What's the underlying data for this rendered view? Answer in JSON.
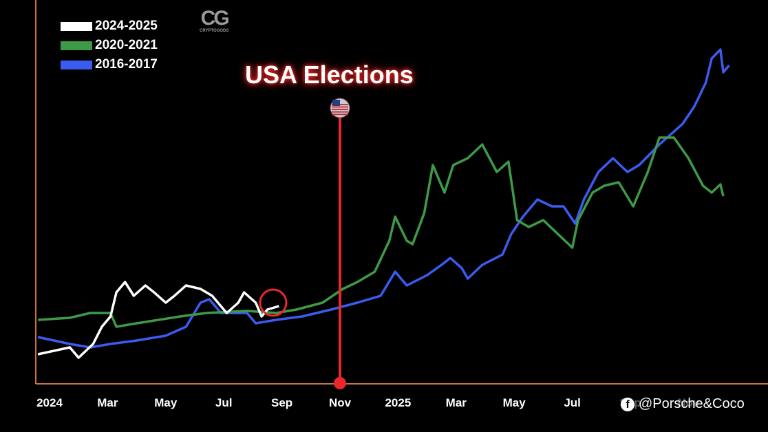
{
  "chart_data": {
    "type": "line",
    "title": "USA Elections",
    "xlabel": "",
    "ylabel": "",
    "x_unit": "months since Jan 2024 (cycle-aligned)",
    "y_unit": "relative price index (unlabeled)",
    "xlim": [
      -0.4,
      23.8
    ],
    "ylim": [
      0,
      100
    ],
    "grid": false,
    "legend_position": "top-left",
    "x_ticks": [
      {
        "m": 0,
        "label": "2024"
      },
      {
        "m": 2,
        "label": "Mar"
      },
      {
        "m": 4,
        "label": "May"
      },
      {
        "m": 6,
        "label": "Jul"
      },
      {
        "m": 8,
        "label": "Sep"
      },
      {
        "m": 10,
        "label": "Nov"
      },
      {
        "m": 12,
        "label": "2025"
      },
      {
        "m": 14,
        "label": "Mar"
      },
      {
        "m": 16,
        "label": "May"
      },
      {
        "m": 18,
        "label": "Jul"
      },
      {
        "m": 20,
        "label": "Sep"
      },
      {
        "m": 22,
        "label": "Nov"
      }
    ],
    "event": {
      "label": "USA Elections",
      "m": 10,
      "icon": "us-flag-icon"
    },
    "highlight": {
      "m": 7.7,
      "v": 24,
      "note": "current position"
    },
    "series": [
      {
        "name": "2024-2025",
        "color": "#ffffff",
        "points": [
          [
            -0.4,
            9
          ],
          [
            0.7,
            11
          ],
          [
            1.0,
            8
          ],
          [
            1.5,
            12
          ],
          [
            1.8,
            17
          ],
          [
            2.1,
            20
          ],
          [
            2.3,
            27
          ],
          [
            2.6,
            30
          ],
          [
            2.9,
            26
          ],
          [
            3.3,
            29
          ],
          [
            3.6,
            27
          ],
          [
            4.0,
            24
          ],
          [
            4.3,
            26
          ],
          [
            4.7,
            29
          ],
          [
            5.2,
            28
          ],
          [
            5.6,
            26
          ],
          [
            6.1,
            21
          ],
          [
            6.5,
            24
          ],
          [
            6.7,
            27
          ],
          [
            7.1,
            24
          ],
          [
            7.3,
            20
          ],
          [
            7.5,
            22
          ],
          [
            7.9,
            23
          ]
        ]
      },
      {
        "name": "2020-2021",
        "color": "#3e9a48",
        "points": [
          [
            -0.4,
            19
          ],
          [
            0.7,
            19.6
          ],
          [
            1.4,
            21
          ],
          [
            2.1,
            21
          ],
          [
            2.3,
            17
          ],
          [
            3.0,
            18
          ],
          [
            4.5,
            20
          ],
          [
            5.4,
            21
          ],
          [
            6.8,
            21.6
          ],
          [
            7.8,
            21
          ],
          [
            8.5,
            22
          ],
          [
            9.4,
            24
          ],
          [
            10.1,
            28
          ],
          [
            10.6,
            30
          ],
          [
            11.2,
            33
          ],
          [
            11.7,
            42
          ],
          [
            11.9,
            49
          ],
          [
            12.3,
            42
          ],
          [
            12.5,
            41
          ],
          [
            12.9,
            50
          ],
          [
            13.2,
            64
          ],
          [
            13.6,
            56
          ],
          [
            13.9,
            64
          ],
          [
            14.4,
            66
          ],
          [
            14.9,
            70
          ],
          [
            15.4,
            62
          ],
          [
            15.8,
            65
          ],
          [
            16.1,
            48
          ],
          [
            16.5,
            46
          ],
          [
            17.0,
            48
          ],
          [
            17.5,
            44
          ],
          [
            18.0,
            40
          ],
          [
            18.2,
            48
          ],
          [
            18.7,
            56
          ],
          [
            19.1,
            58
          ],
          [
            19.6,
            59
          ],
          [
            20.1,
            52
          ],
          [
            20.6,
            62
          ],
          [
            21.0,
            72
          ],
          [
            21.5,
            72
          ],
          [
            22.0,
            66
          ],
          [
            22.5,
            58
          ],
          [
            22.8,
            56
          ],
          [
            23.1,
            58.4
          ],
          [
            23.2,
            55
          ]
        ]
      },
      {
        "name": "2016-2017",
        "color": "#3a5cf0",
        "points": [
          [
            -0.4,
            14
          ],
          [
            0.7,
            12
          ],
          [
            1.4,
            11
          ],
          [
            2.1,
            12
          ],
          [
            3.0,
            13
          ],
          [
            4.0,
            14.4
          ],
          [
            4.7,
            17
          ],
          [
            5.2,
            24
          ],
          [
            5.5,
            25
          ],
          [
            5.9,
            21
          ],
          [
            6.8,
            21
          ],
          [
            7.1,
            18
          ],
          [
            7.8,
            19
          ],
          [
            8.7,
            20
          ],
          [
            9.7,
            22
          ],
          [
            10.6,
            24
          ],
          [
            11.4,
            26
          ],
          [
            11.9,
            33
          ],
          [
            12.3,
            29
          ],
          [
            13.0,
            32
          ],
          [
            13.5,
            35
          ],
          [
            13.8,
            37
          ],
          [
            14.2,
            34
          ],
          [
            14.4,
            31
          ],
          [
            14.9,
            35
          ],
          [
            15.6,
            38
          ],
          [
            15.9,
            44
          ],
          [
            16.3,
            49
          ],
          [
            16.8,
            54
          ],
          [
            17.3,
            52
          ],
          [
            17.7,
            52
          ],
          [
            18.1,
            47
          ],
          [
            18.4,
            54
          ],
          [
            18.9,
            62
          ],
          [
            19.4,
            66
          ],
          [
            19.9,
            62
          ],
          [
            20.3,
            64
          ],
          [
            21.0,
            70
          ],
          [
            21.8,
            76
          ],
          [
            22.2,
            81
          ],
          [
            22.6,
            88
          ],
          [
            22.8,
            95
          ],
          [
            23.1,
            97.6
          ],
          [
            23.2,
            91
          ],
          [
            23.4,
            93
          ]
        ]
      }
    ]
  },
  "logo": {
    "mark": "CG",
    "name": "CRYPTOGODS"
  },
  "watermark": {
    "icon": "facebook-icon",
    "text": "@Porsche&Coco"
  },
  "colors": {
    "axis": "#c9733f",
    "event": "#e8282d"
  }
}
